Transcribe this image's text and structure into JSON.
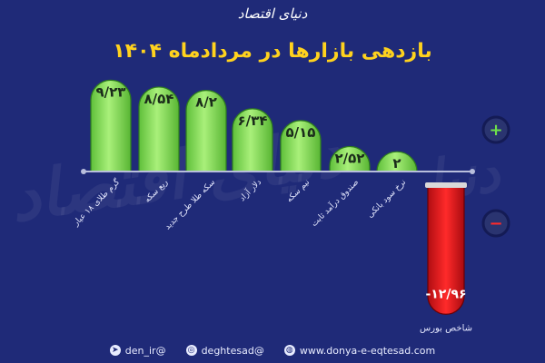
{
  "header": {
    "logo_text": "دنیای اقتصاد",
    "title": "بازدهی بازارها در مردادماه ۱۴۰۴"
  },
  "chart_data": {
    "type": "bar",
    "categories": [
      "گرم طلای ۱۸ عیار",
      "ربع سکه",
      "سکه طلا طرح جدید",
      "دلار آزاد",
      "نیم سکه",
      "صندوق درآمد ثابت",
      "نرخ سود بانکی",
      "شاخص بورس"
    ],
    "value_labels": [
      "۹/۲۳",
      "۸/۵۴",
      "۸/۲",
      "۶/۳۴",
      "۵/۱۵",
      "۲/۵۲",
      "۲",
      "-۱۲/۹۶"
    ],
    "values": [
      9.23,
      8.54,
      8.2,
      6.34,
      5.15,
      2.52,
      2,
      -12.96
    ],
    "positive_color": "#8ee65a",
    "negative_color": "#e0171c",
    "positive_sign": "+",
    "negative_sign": "−"
  },
  "footer": {
    "items": [
      {
        "icon": "telegram-icon",
        "text": "den_ir@"
      },
      {
        "icon": "instagram-icon",
        "text": "deghtesad@"
      },
      {
        "icon": "globe-icon",
        "text": "www.donya-e-eqtesad.com"
      }
    ]
  }
}
